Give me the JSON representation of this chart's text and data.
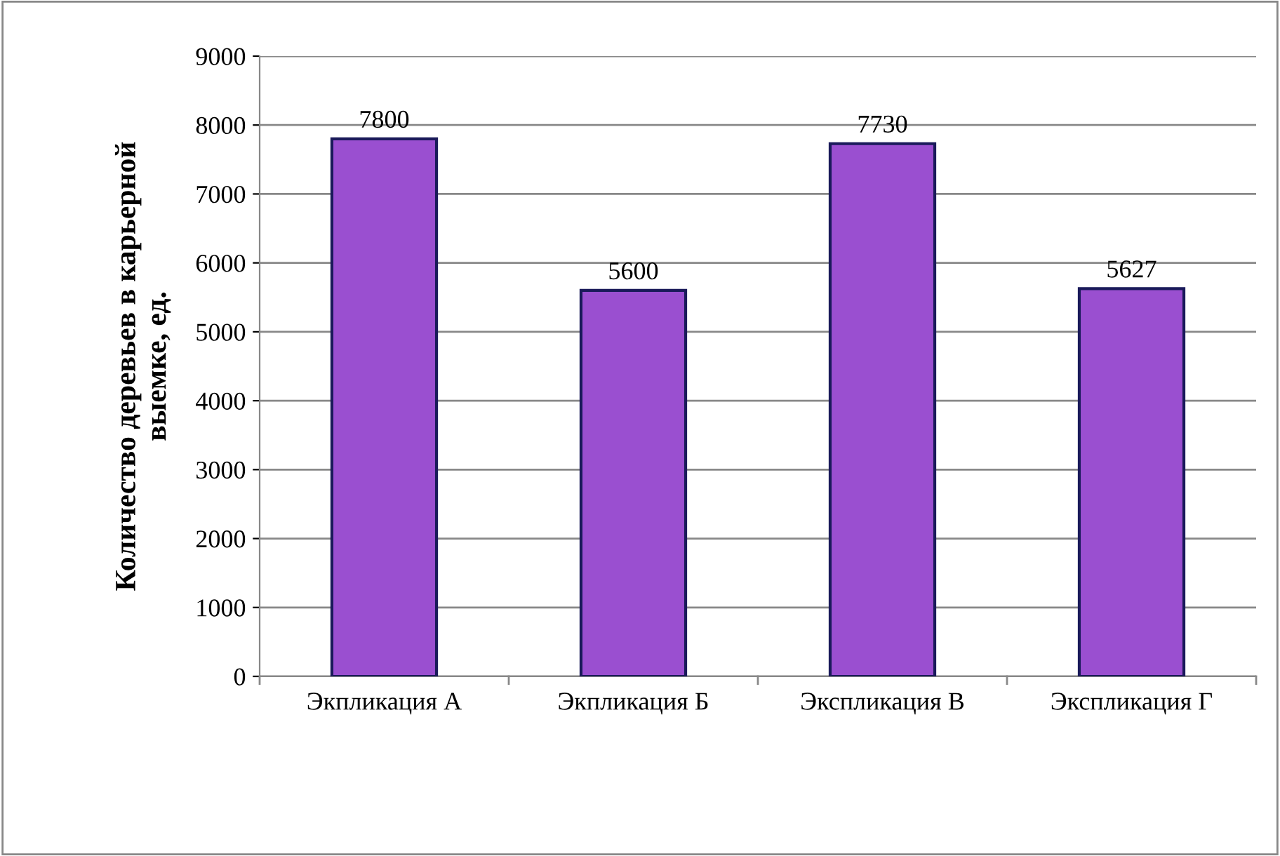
{
  "chart_data": {
    "type": "bar",
    "ylabel": "Количество деревьев в карьерной\nвыемке, ед.",
    "categories": [
      "Экпликация А",
      "Экпликация Б",
      "Экспликация В",
      "Экспликация Г"
    ],
    "values": [
      7800,
      5600,
      7730,
      5627
    ],
    "color": "#9a4fd0",
    "ylim": [
      0,
      9000
    ],
    "yticks": [
      0,
      1000,
      2000,
      3000,
      4000,
      5000,
      6000,
      7000,
      8000,
      9000
    ],
    "grid": "y",
    "data_labels": true,
    "legend": false
  }
}
